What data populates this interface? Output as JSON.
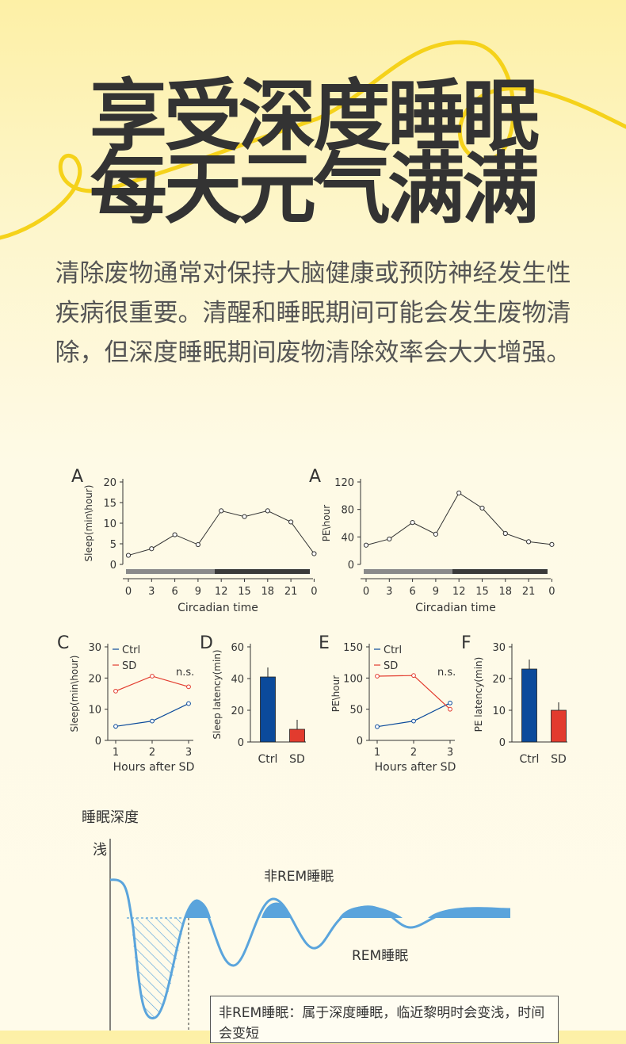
{
  "hero": {
    "line1": "享受深度睡眠",
    "line2": "每天元气满满",
    "intro": "清除废物通常对保持大脑健康或预防神经发生性疾病很重要。清醒和睡眠期间可能会发生废物清除，但深度睡眠期间废物清除效率会大大增强。"
  },
  "colors": {
    "accent_yellow": "#f5d21a",
    "ctrl_blue": "#0b4a9b",
    "sd_red": "#e23b2e",
    "wave_blue": "#5aa4dc"
  },
  "chart_data": [
    {
      "panel": "A",
      "type": "line",
      "ylabel": "Sleep(min\\hour)",
      "xlabel": "Circadian time",
      "x": [
        0,
        3,
        6,
        9,
        12,
        15,
        18,
        21,
        0
      ],
      "values": [
        2.2,
        3.8,
        7.2,
        4.8,
        13,
        11.6,
        13,
        10.3,
        2.6
      ],
      "ylim": [
        0,
        20
      ],
      "yticks": [
        0,
        5,
        10,
        15,
        20
      ]
    },
    {
      "panel": "A",
      "type": "line",
      "ylabel": "PE\\hour",
      "xlabel": "Circadian time",
      "x": [
        0,
        3,
        6,
        9,
        12,
        15,
        18,
        21,
        0
      ],
      "values": [
        28,
        37,
        61,
        44,
        104,
        82,
        45,
        33,
        29
      ],
      "ylim": [
        0,
        120
      ],
      "yticks": [
        0,
        40,
        80,
        120
      ]
    },
    {
      "panel": "C",
      "type": "line",
      "ylabel": "Sleep(min\\hour)",
      "xlabel": "Hours after SD",
      "x": [
        1,
        2,
        3
      ],
      "ylim": [
        0,
        30
      ],
      "yticks": [
        0,
        10,
        20,
        30
      ],
      "annotation": "n.s.",
      "series": [
        {
          "name": "Ctrl",
          "values": [
            4.5,
            6.2,
            11.8
          ]
        },
        {
          "name": "SD",
          "values": [
            15.8,
            20.6,
            17.2
          ]
        }
      ]
    },
    {
      "panel": "D",
      "type": "bar",
      "ylabel": "Sleep latency(min)",
      "categories": [
        "Ctrl",
        "SD"
      ],
      "values": [
        41,
        8
      ],
      "errors": [
        6,
        6
      ],
      "ylim": [
        0,
        60
      ],
      "yticks": [
        0,
        20,
        40,
        60
      ]
    },
    {
      "panel": "E",
      "type": "line",
      "ylabel": "PE\\hour",
      "xlabel": "Hours after SD",
      "x": [
        1,
        2,
        3
      ],
      "ylim": [
        0,
        150
      ],
      "yticks": [
        0,
        50,
        100,
        150
      ],
      "annotation": "n.s.",
      "series": [
        {
          "name": "Ctrl",
          "values": [
            22,
            31,
            60
          ]
        },
        {
          "name": "SD",
          "values": [
            103,
            104,
            50
          ]
        }
      ]
    },
    {
      "panel": "F",
      "type": "bar",
      "ylabel": "PE latency(min)",
      "categories": [
        "Ctrl",
        "SD"
      ],
      "values": [
        23,
        10
      ],
      "errors": [
        3,
        2.5
      ],
      "ylim": [
        0,
        30
      ],
      "yticks": [
        0,
        10,
        20,
        30
      ]
    },
    {
      "panel": "sleep-depth",
      "type": "area",
      "title": "睡眠深度",
      "ytick_label": "浅",
      "labels": {
        "nrem": "非REM睡眠",
        "rem": "REM睡眠"
      },
      "note": "非REM睡眠：属于深度睡眠，临近黎明时会变浅，时间会变短"
    }
  ]
}
